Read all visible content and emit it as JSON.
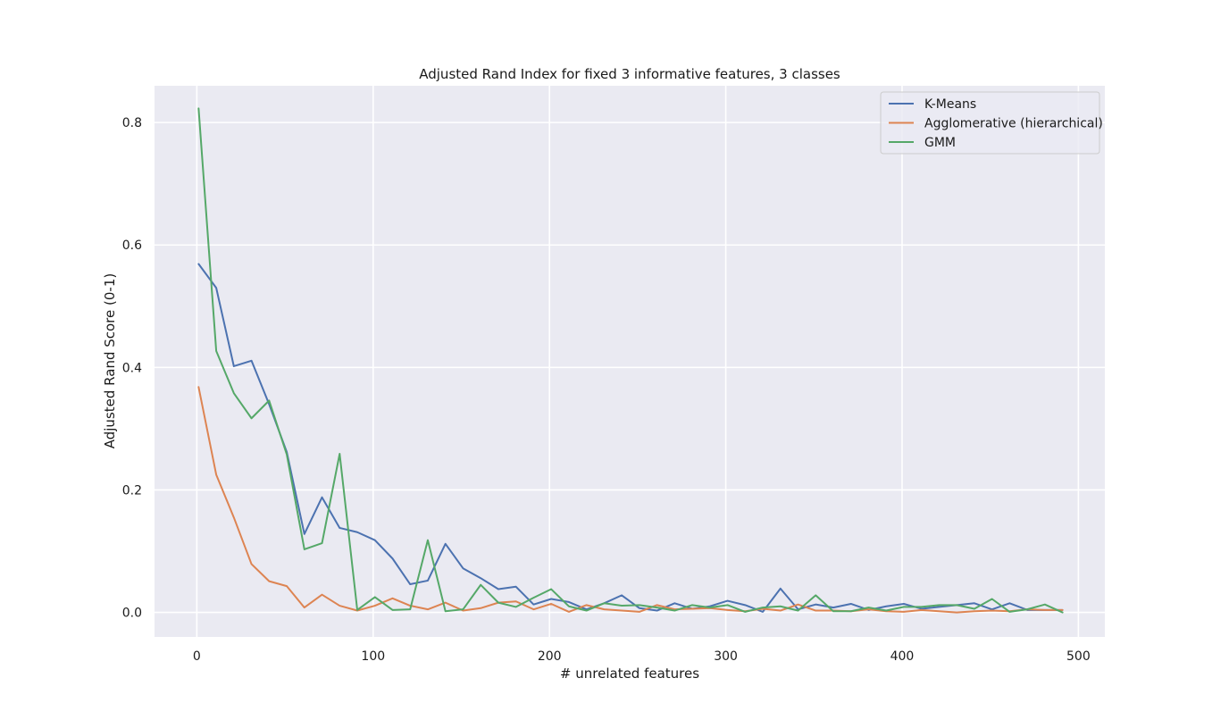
{
  "chart_data": {
    "type": "line",
    "title": "Adjusted Rand Index for fixed 3 informative features, 3 classes",
    "xlabel": "# unrelated features",
    "ylabel": "Adjusted Rand Score (0-1)",
    "xlim": [
      -24,
      515
    ],
    "ylim": [
      -0.04,
      0.86
    ],
    "xticks": [
      0,
      100,
      200,
      300,
      400,
      500
    ],
    "yticks": [
      0.0,
      0.2,
      0.4,
      0.6,
      0.8
    ],
    "xtick_labels": [
      "0",
      "100",
      "200",
      "300",
      "400",
      "500"
    ],
    "ytick_labels": [
      "0.0",
      "0.2",
      "0.4",
      "0.6",
      "0.8"
    ],
    "grid": true,
    "legend_position": "top-right",
    "x": [
      1,
      11,
      21,
      31,
      41,
      51,
      61,
      71,
      81,
      91,
      101,
      111,
      121,
      131,
      141,
      151,
      161,
      171,
      181,
      191,
      201,
      211,
      221,
      231,
      241,
      251,
      261,
      271,
      281,
      291,
      301,
      311,
      321,
      331,
      341,
      351,
      361,
      371,
      381,
      391,
      401,
      411,
      421,
      431,
      441,
      451,
      461,
      471,
      481,
      491
    ],
    "series": [
      {
        "name": "K-Means",
        "color": "#4c72b0",
        "values": [
          0.569,
          0.53,
          0.402,
          0.411,
          0.34,
          0.262,
          0.128,
          0.188,
          0.138,
          0.131,
          0.118,
          0.088,
          0.046,
          0.052,
          0.112,
          0.072,
          0.056,
          0.038,
          0.042,
          0.013,
          0.022,
          0.017,
          0.005,
          0.015,
          0.028,
          0.007,
          0.003,
          0.015,
          0.006,
          0.01,
          0.019,
          0.012,
          0.001,
          0.039,
          0.005,
          0.013,
          0.008,
          0.014,
          0.004,
          0.01,
          0.014,
          0.006,
          0.009,
          0.012,
          0.015,
          0.005,
          0.015,
          0.004,
          0.004,
          0.004
        ]
      },
      {
        "name": "Agglomerative (hierarchical)",
        "color": "#dd8452",
        "values": [
          0.368,
          0.225,
          0.155,
          0.079,
          0.051,
          0.043,
          0.008,
          0.029,
          0.011,
          0.003,
          0.011,
          0.023,
          0.011,
          0.005,
          0.016,
          0.003,
          0.007,
          0.016,
          0.018,
          0.005,
          0.014,
          0.001,
          0.012,
          0.005,
          0.003,
          0.001,
          0.012,
          0.005,
          0.006,
          0.007,
          0.004,
          0.002,
          0.006,
          0.003,
          0.013,
          0.003,
          0.003,
          0.002,
          0.005,
          0.002,
          0.001,
          0.004,
          0.002,
          0.0,
          0.002,
          0.003,
          0.002,
          0.005,
          0.004,
          0.004
        ]
      },
      {
        "name": "GMM",
        "color": "#55a868",
        "values": [
          0.823,
          0.427,
          0.358,
          0.317,
          0.346,
          0.258,
          0.103,
          0.113,
          0.259,
          0.004,
          0.025,
          0.004,
          0.005,
          0.118,
          0.002,
          0.005,
          0.045,
          0.016,
          0.009,
          0.024,
          0.038,
          0.01,
          0.003,
          0.015,
          0.011,
          0.012,
          0.008,
          0.003,
          0.012,
          0.008,
          0.012,
          0.001,
          0.008,
          0.01,
          0.003,
          0.028,
          0.002,
          0.002,
          0.008,
          0.003,
          0.009,
          0.009,
          0.012,
          0.012,
          0.006,
          0.022,
          0.001,
          0.005,
          0.013,
          0.0
        ]
      }
    ]
  }
}
